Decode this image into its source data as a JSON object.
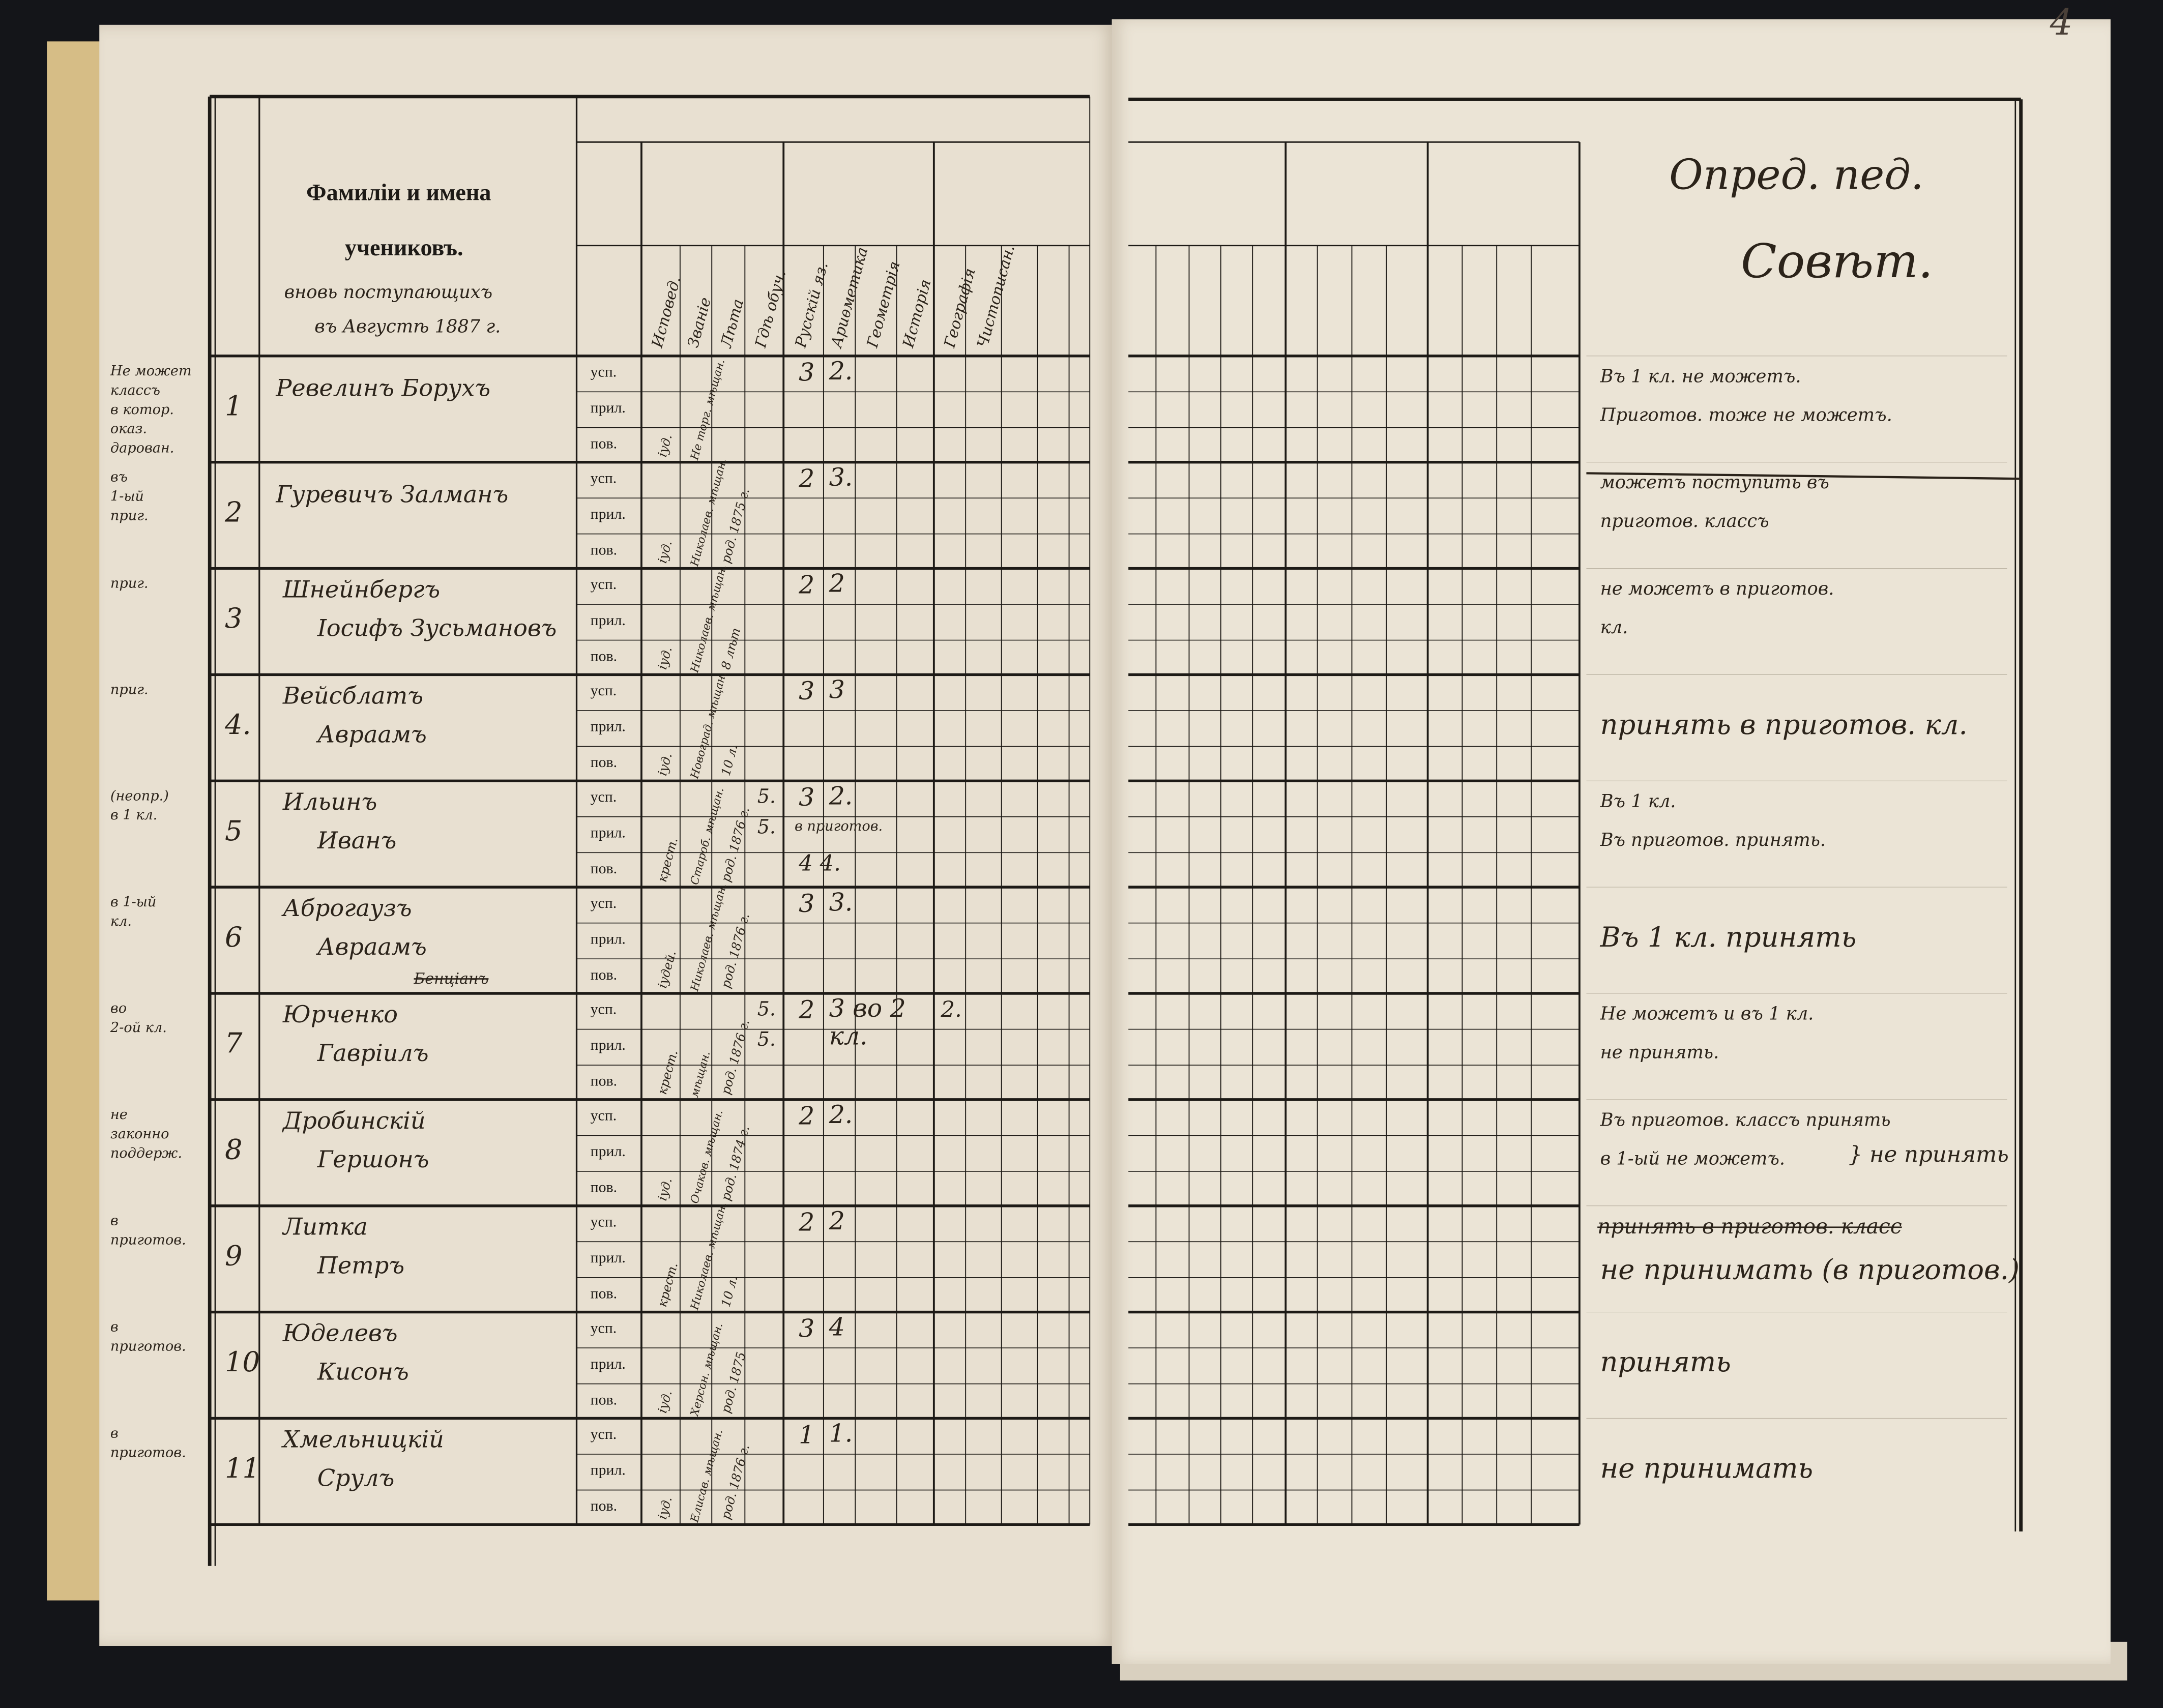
{
  "page_number": "4",
  "header": {
    "title_line1": "Фамиліи и имена",
    "title_line2": "учениковъ.",
    "handwritten_note_line1": "вновь поступающихъ",
    "handwritten_note_line2": "въ Августѣ 1887 г.",
    "columns": [
      "Исповед.",
      "Званіе",
      "Лѣта",
      "Гдѣ обуч.",
      "Русскій яз.",
      "Ариѳметика",
      "Геометрія",
      "Исторія",
      "Географія",
      "Чистописан."
    ],
    "decision_heading_line1": "Опред. пед.",
    "decision_heading_line2": "Совѣт."
  },
  "row_labels": [
    "усп.",
    "прил.",
    "пов."
  ],
  "students": [
    {
      "num": "1",
      "margin": [
        "Не может",
        "классъ",
        "в котор.",
        "оказ.",
        "дарован."
      ],
      "name": [
        "Ревелинъ Борухъ"
      ],
      "religion": "іуд.",
      "estate": "Не торг. мѣщан.",
      "age": "",
      "prev": [],
      "grade_ru": "3",
      "grade_math": "2.",
      "extra": [],
      "geo": "",
      "remark": [
        "Въ 1 кл. не можетъ.",
        "Приготов. тоже не можетъ."
      ],
      "struck_remark": ""
    },
    {
      "num": "2",
      "margin": [
        "въ",
        "1-ый",
        "приг."
      ],
      "name": [
        "Гуревичъ Залманъ"
      ],
      "religion": "іуд.",
      "estate": "Николаев. мѣщан.",
      "age": "род. 1875 г.",
      "prev": [],
      "grade_ru": "2",
      "grade_math": "3.",
      "extra": [],
      "geo": "",
      "remark": [
        "можетъ поступить въ",
        "приготов. классъ"
      ],
      "struck_remark": ""
    },
    {
      "num": "3",
      "margin": [
        "приг."
      ],
      "name": [
        "Шнейнбергъ",
        "Іосифъ Зусьмановъ"
      ],
      "religion": "іуд.",
      "estate": "Николаев. мѣщан.",
      "age": "8 лѣт",
      "prev": [],
      "grade_ru": "2",
      "grade_math": "2",
      "extra": [],
      "geo": "",
      "remark": [
        "не можетъ в приготов.",
        "кл."
      ],
      "struck_remark": ""
    },
    {
      "num": "4.",
      "margin": [
        "приг."
      ],
      "name": [
        "Вейсблатъ",
        "Авраамъ"
      ],
      "religion": "іуд.",
      "estate": "Новоград. мѣщан.",
      "age": "10 л.",
      "prev": [],
      "grade_ru": "3",
      "grade_math": "3",
      "extra": [],
      "geo": "",
      "remark": [
        "принять в приготов. кл."
      ],
      "struck_remark": ""
    },
    {
      "num": "5",
      "margin": [
        "(неопр.)",
        "в 1 кл."
      ],
      "name": [
        "Ильинъ",
        "Иванъ"
      ],
      "religion": "крест.",
      "estate": "Староб. мѣщан.",
      "age": "род. 1876 г.",
      "prev": [
        "5.",
        "5."
      ],
      "grade_ru": "3",
      "grade_math": "2.",
      "extra": [
        "в приготов.",
        "4 4."
      ],
      "geo": "",
      "remark": [
        "Въ 1 кл.",
        "Въ приготов. принять."
      ],
      "struck_remark": ""
    },
    {
      "num": "6",
      "margin": [
        "в 1-ый",
        "кл."
      ],
      "name": [
        "Аброгаузъ",
        "Авраамъ"
      ],
      "struck_name": "Бенціанъ",
      "religion": "іудей.",
      "estate": "Николаев. мѣщан.",
      "age": "род. 1876 г.",
      "prev": [],
      "grade_ru": "3",
      "grade_math": "3.",
      "extra": [],
      "geo": "",
      "remark": [
        "Въ 1 кл. принять"
      ],
      "struck_remark": ""
    },
    {
      "num": "7",
      "margin": [
        "во",
        "2-ой кл."
      ],
      "name": [
        "Юрченко",
        "Гавріилъ"
      ],
      "religion": "крест.",
      "estate": "мѣщан.",
      "age": "род. 1876 г.",
      "prev": [
        "5.",
        "5."
      ],
      "grade_ru": "2",
      "grade_math": "3 во 2 кл.",
      "extra": [],
      "geo": "2.",
      "remark": [
        "Не можетъ и въ 1 кл.",
        "не принять."
      ],
      "struck_remark": ""
    },
    {
      "num": "8",
      "margin": [
        "не",
        "законно",
        "поддерж."
      ],
      "name": [
        "Дробинскій",
        "Гершонъ"
      ],
      "religion": "іуд.",
      "estate": "Очаков. мѣщан.",
      "age": "род. 1874 г.",
      "prev": [],
      "grade_ru": "2",
      "grade_math": "2.",
      "extra": [],
      "geo": "",
      "remark": [
        "Въ приготов. классъ принять",
        "в 1-ый не можетъ.",
        "} не принять"
      ],
      "struck_remark": ""
    },
    {
      "num": "9",
      "margin": [
        "в",
        "приготов."
      ],
      "name": [
        "Литка",
        "Петръ"
      ],
      "religion": "крест.",
      "estate": "Николаев. мѣщан.",
      "age": "10 л.",
      "prev": [],
      "grade_ru": "2",
      "grade_math": "2",
      "extra": [],
      "geo": "",
      "remark": [
        "не принимать (в приготов.)"
      ],
      "struck_remark": "принять в приготов. класс"
    },
    {
      "num": "10",
      "margin": [
        "в",
        "приготов."
      ],
      "name": [
        "Юделевъ",
        "Кисонъ"
      ],
      "religion": "іуд.",
      "estate": "Херсон. мѣщан.",
      "age": "род. 1875",
      "prev": [],
      "grade_ru": "3",
      "grade_math": "4",
      "extra": [],
      "geo": "",
      "remark": [
        "принять"
      ],
      "struck_remark": ""
    },
    {
      "num": "11",
      "margin": [
        "в",
        "приготов."
      ],
      "name": [
        "Хмельницкій",
        "Срулъ"
      ],
      "religion": "іуд.",
      "estate": "Елисав. мѣщан.",
      "age": "род. 1876 г.",
      "prev": [],
      "grade_ru": "1",
      "grade_math": "1.",
      "extra": [],
      "geo": "",
      "remark": [
        "не принимать"
      ],
      "struck_remark": ""
    }
  ],
  "colors": {
    "paper": "#e8e0d1",
    "ink": "#2b231a",
    "print": "#1d1a16",
    "background": "#141519"
  }
}
